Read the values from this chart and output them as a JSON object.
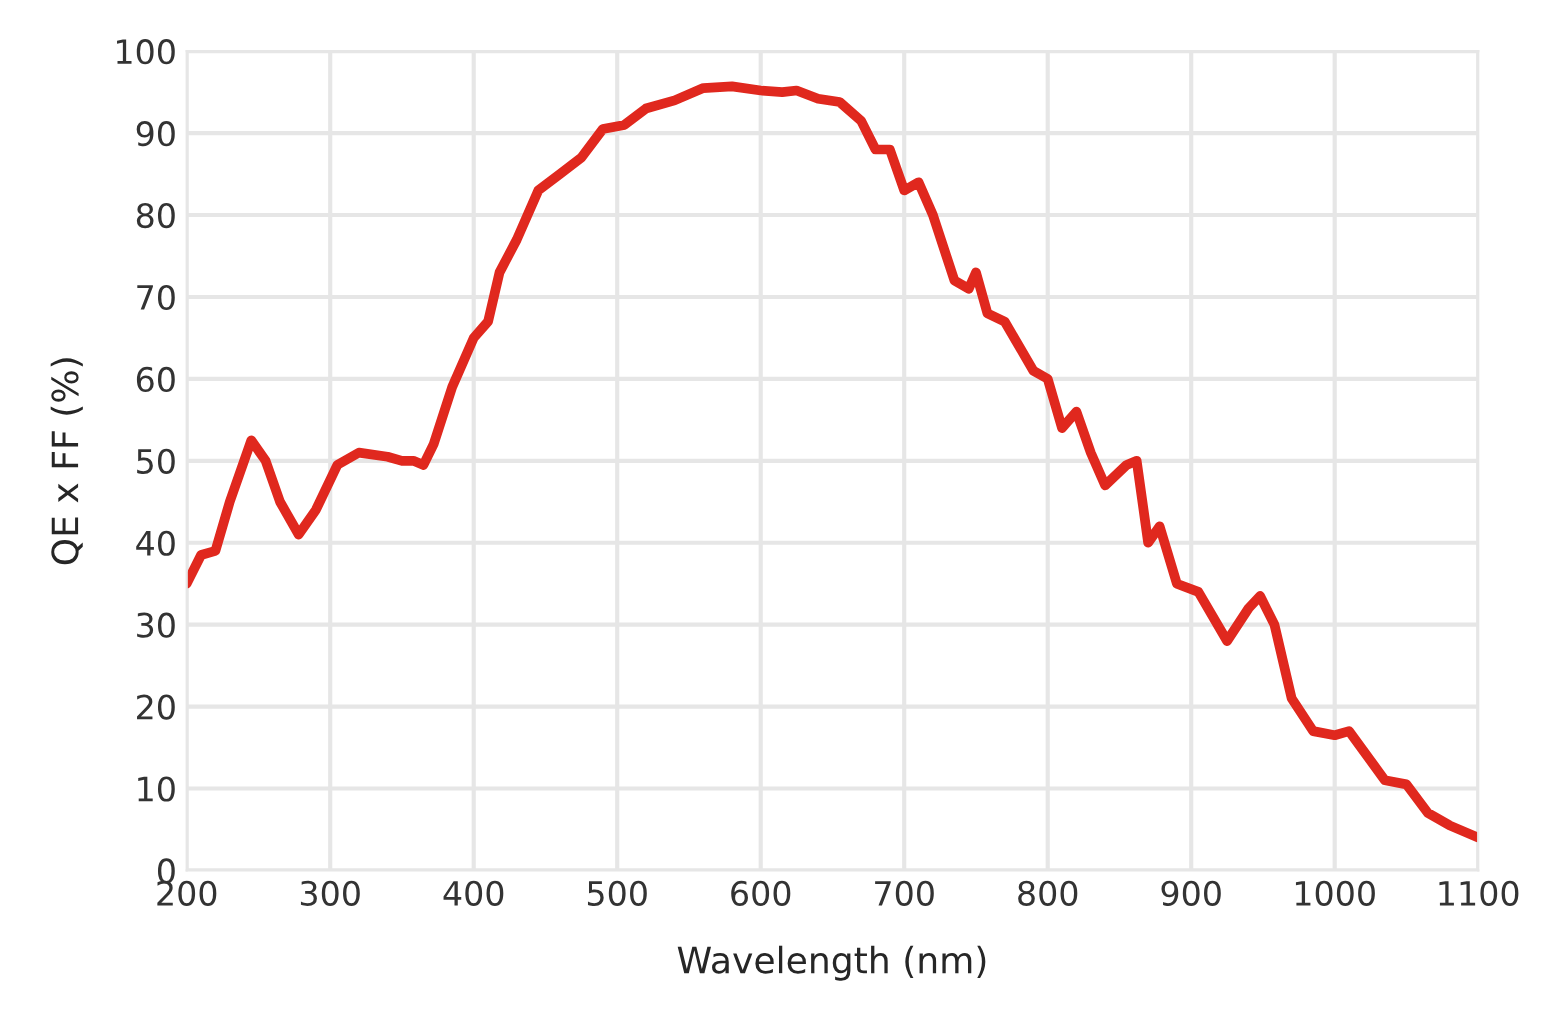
{
  "chart_data": {
    "type": "line",
    "xlabel": "Wavelength (nm)",
    "ylabel": "QE x FF (%)",
    "x": [
      200,
      210,
      220,
      230,
      245,
      255,
      265,
      278,
      290,
      305,
      320,
      340,
      350,
      358,
      365,
      372,
      385,
      400,
      410,
      418,
      430,
      445,
      460,
      475,
      490,
      505,
      520,
      540,
      560,
      580,
      600,
      615,
      625,
      640,
      655,
      670,
      680,
      690,
      700,
      710,
      720,
      735,
      745,
      750,
      758,
      770,
      790,
      800,
      810,
      820,
      830,
      840,
      855,
      862,
      870,
      878,
      890,
      905,
      925,
      940,
      948,
      958,
      970,
      985,
      1000,
      1010,
      1035,
      1050,
      1065,
      1080,
      1100
    ],
    "series": [
      {
        "color": "#e0281e",
        "values": [
          35,
          38.5,
          39,
          45,
          52.5,
          50,
          45,
          41,
          44,
          49.5,
          51,
          50.5,
          50,
          50,
          49.5,
          52,
          59,
          65,
          67,
          73,
          77,
          83,
          85,
          87,
          90.5,
          91,
          93,
          94,
          95.5,
          95.7,
          95.2,
          95,
          95.2,
          94.2,
          93.8,
          91.5,
          88,
          88,
          83,
          84,
          80,
          72,
          71,
          73,
          68,
          67,
          61,
          60,
          54,
          56,
          51,
          47,
          49.5,
          50,
          40,
          42,
          35,
          34,
          28,
          32,
          33.5,
          30,
          21,
          17,
          16.5,
          17,
          11,
          10.5,
          7,
          5.5,
          4
        ]
      }
    ],
    "xlim": [
      200,
      1100
    ],
    "ylim": [
      0,
      100
    ],
    "xticks": [
      200,
      300,
      400,
      500,
      600,
      700,
      800,
      900,
      1000,
      1100
    ],
    "yticks": [
      0,
      10,
      20,
      30,
      40,
      50,
      60,
      70,
      80,
      90,
      100
    ],
    "grid": true,
    "marker": "none",
    "line_style": "solid"
  }
}
